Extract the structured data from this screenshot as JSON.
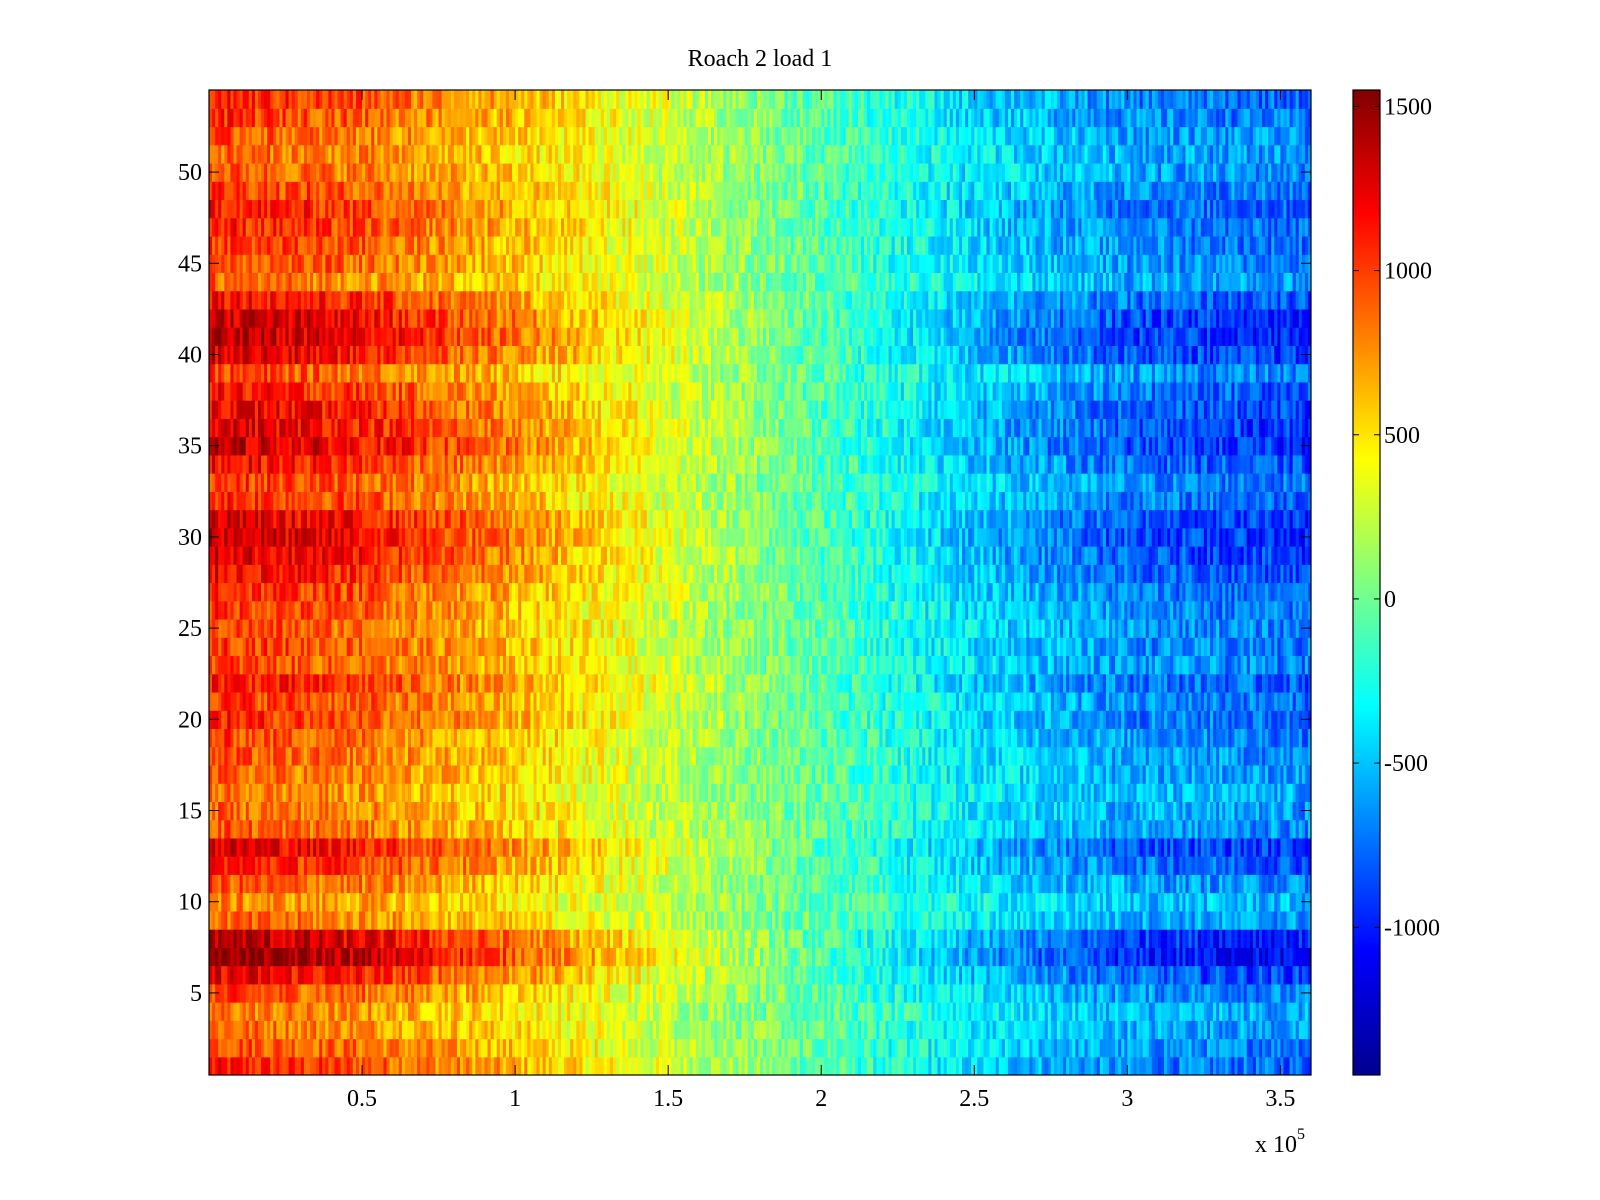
{
  "chart_data": {
    "type": "heatmap",
    "title": "Roach 2 load 1",
    "xlabel": "",
    "ylabel": "",
    "x_range": [
      0,
      360000
    ],
    "y_range": [
      0.5,
      54.5
    ],
    "rows": 54,
    "x_ticks": [
      {
        "value": 50000,
        "label": "0.5"
      },
      {
        "value": 100000,
        "label": "1"
      },
      {
        "value": 150000,
        "label": "1.5"
      },
      {
        "value": 200000,
        "label": "2"
      },
      {
        "value": 250000,
        "label": "2.5"
      },
      {
        "value": 300000,
        "label": "3"
      },
      {
        "value": 350000,
        "label": "3.5"
      }
    ],
    "x_multiplier_label": {
      "base": "x 10",
      "exponent": "5"
    },
    "y_ticks": [
      {
        "value": 5,
        "label": "5"
      },
      {
        "value": 10,
        "label": "10"
      },
      {
        "value": 15,
        "label": "15"
      },
      {
        "value": 20,
        "label": "20"
      },
      {
        "value": 25,
        "label": "25"
      },
      {
        "value": 30,
        "label": "30"
      },
      {
        "value": 35,
        "label": "35"
      },
      {
        "value": 40,
        "label": "40"
      },
      {
        "value": 45,
        "label": "45"
      },
      {
        "value": 50,
        "label": "50"
      }
    ],
    "colorbar": {
      "colormap": "jet",
      "range": [
        -1450,
        1550
      ],
      "ticks": [
        {
          "value": 1500,
          "label": "1500"
        },
        {
          "value": 1000,
          "label": "1000"
        },
        {
          "value": 500,
          "label": "500"
        },
        {
          "value": 0,
          "label": "0"
        },
        {
          "value": -500,
          "label": "-500"
        },
        {
          "value": -1000,
          "label": "-1000"
        }
      ]
    },
    "value_trend": {
      "x": [
        0,
        50000,
        100000,
        150000,
        200000,
        250000,
        300000,
        360000
      ],
      "mean_value": [
        1050,
        900,
        620,
        280,
        -70,
        -420,
        -650,
        -750
      ]
    },
    "row_amplitude": {
      "rows": [
        1,
        2,
        3,
        4,
        5,
        6,
        7,
        8,
        9,
        10,
        11,
        12,
        13,
        14,
        15,
        16,
        17,
        18,
        19,
        20,
        21,
        22,
        23,
        24,
        25,
        26,
        27,
        28,
        29,
        30,
        31,
        32,
        33,
        34,
        35,
        36,
        37,
        38,
        39,
        40,
        41,
        42,
        43,
        44,
        45,
        46,
        47,
        48,
        49,
        50,
        51,
        52,
        53,
        54
      ],
      "factor": [
        1.05,
        0.95,
        0.85,
        0.8,
        0.95,
        1.2,
        1.5,
        1.35,
        0.85,
        0.75,
        0.9,
        1.1,
        1.25,
        0.9,
        0.85,
        0.8,
        0.85,
        0.9,
        0.95,
        1.05,
        1.0,
        1.1,
        0.95,
        1.0,
        0.95,
        1.0,
        1.05,
        1.15,
        1.25,
        1.3,
        1.25,
        1.05,
        1.0,
        1.15,
        1.3,
        1.25,
        1.2,
        1.1,
        0.95,
        1.25,
        1.35,
        1.3,
        1.15,
        0.85,
        0.95,
        1.0,
        1.05,
        1.1,
        1.0,
        0.9,
        0.85,
        0.9,
        1.0,
        1.05
      ]
    },
    "noise_amplitude": 230,
    "colors": {
      "axis": "#000000",
      "background": "#ffffff"
    }
  }
}
